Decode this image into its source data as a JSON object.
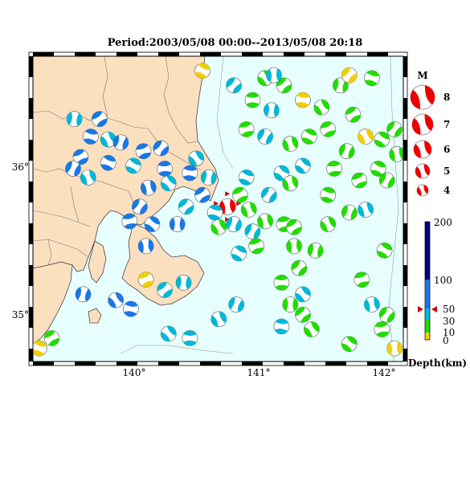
{
  "title": "Period:2003/05/08 00:00--2013/05/08 20:18",
  "axes": {
    "lon_ticks": [
      "140°",
      "141°",
      "142°"
    ],
    "lat_ticks": [
      "36°",
      "35°"
    ]
  },
  "magnitude_legend": {
    "header": "M",
    "levels": [
      "8",
      "7",
      "6",
      "5",
      "4"
    ],
    "color": "#ee0000"
  },
  "depth_scale": {
    "unit_label": "Depth(km)",
    "ticks": [
      "200",
      "100",
      "50",
      "30",
      "10",
      "0"
    ],
    "colors": {
      "shallow": "#f0d000",
      "green": "#22dd00",
      "cyan": "#00b8d8",
      "blue": "#1a78e6",
      "deep": "#00008a"
    }
  },
  "map_colors": {
    "land": "#fbe0c0",
    "sea": "#e8ffff",
    "coast": "#444444"
  },
  "events": [
    {
      "id": "main",
      "lon": 140.75,
      "lat": 35.72,
      "mag": 6,
      "depth": "main"
    },
    {
      "id": "e1",
      "lon": 139.53,
      "lat": 36.32,
      "mag": 4,
      "depth": "cyan"
    },
    {
      "id": "e2",
      "lon": 139.73,
      "lat": 36.32,
      "mag": 4,
      "depth": "blue"
    },
    {
      "id": "e3",
      "lon": 139.66,
      "lat": 36.2,
      "mag": 4,
      "depth": "blue"
    },
    {
      "id": "e4",
      "lon": 139.8,
      "lat": 36.18,
      "mag": 4,
      "depth": "cyan"
    },
    {
      "id": "e5",
      "lon": 139.9,
      "lat": 36.16,
      "mag": 4,
      "depth": "blue"
    },
    {
      "id": "e6",
      "lon": 139.58,
      "lat": 36.06,
      "mag": 4,
      "depth": "blue"
    },
    {
      "id": "e7",
      "lon": 139.8,
      "lat": 36.02,
      "mag": 4,
      "depth": "blue"
    },
    {
      "id": "e8",
      "lon": 139.64,
      "lat": 35.92,
      "mag": 4,
      "depth": "cyan"
    },
    {
      "id": "e9",
      "lon": 139.52,
      "lat": 35.98,
      "mag": 4,
      "depth": "blue"
    },
    {
      "id": "e10",
      "lon": 140.08,
      "lat": 36.1,
      "mag": 4,
      "depth": "blue"
    },
    {
      "id": "e11",
      "lon": 140.0,
      "lat": 36.0,
      "mag": 4,
      "depth": "cyan"
    },
    {
      "id": "e12",
      "lon": 140.12,
      "lat": 35.85,
      "mag": 4,
      "depth": "blue"
    },
    {
      "id": "e13",
      "lon": 140.05,
      "lat": 35.72,
      "mag": 4,
      "depth": "blue"
    },
    {
      "id": "e14",
      "lon": 139.97,
      "lat": 35.62,
      "mag": 4,
      "depth": "blue"
    },
    {
      "id": "e15",
      "lon": 140.15,
      "lat": 35.6,
      "mag": 4,
      "depth": "blue"
    },
    {
      "id": "e16",
      "lon": 140.1,
      "lat": 35.45,
      "mag": 4,
      "depth": "blue"
    },
    {
      "id": "e17",
      "lon": 140.22,
      "lat": 36.12,
      "mag": 4,
      "depth": "blue"
    },
    {
      "id": "e18",
      "lon": 140.25,
      "lat": 35.98,
      "mag": 4,
      "depth": "blue"
    },
    {
      "id": "e19",
      "lon": 140.28,
      "lat": 35.88,
      "mag": 4,
      "depth": "cyan"
    },
    {
      "id": "e20",
      "lon": 140.35,
      "lat": 35.6,
      "mag": 4,
      "depth": "blue"
    },
    {
      "id": "e21",
      "lon": 140.42,
      "lat": 35.72,
      "mag": 4,
      "depth": "cyan"
    },
    {
      "id": "e22",
      "lon": 140.45,
      "lat": 35.95,
      "mag": 4,
      "depth": "blue"
    },
    {
      "id": "e23",
      "lon": 140.5,
      "lat": 36.05,
      "mag": 4,
      "depth": "cyan"
    },
    {
      "id": "e24",
      "lon": 140.6,
      "lat": 35.92,
      "mag": 4,
      "depth": "cyan"
    },
    {
      "id": "e25",
      "lon": 140.55,
      "lat": 35.8,
      "mag": 4,
      "depth": "blue"
    },
    {
      "id": "e26",
      "lon": 140.65,
      "lat": 35.68,
      "mag": 4,
      "depth": "cyan"
    },
    {
      "id": "e27",
      "lon": 140.68,
      "lat": 35.58,
      "mag": 4,
      "depth": "green"
    },
    {
      "id": "e28",
      "lon": 140.8,
      "lat": 35.6,
      "mag": 4,
      "depth": "cyan"
    },
    {
      "id": "e29",
      "lon": 140.85,
      "lat": 35.8,
      "mag": 4,
      "depth": "green"
    },
    {
      "id": "e30",
      "lon": 140.9,
      "lat": 35.92,
      "mag": 4,
      "depth": "cyan"
    },
    {
      "id": "e31",
      "lon": 140.92,
      "lat": 35.7,
      "mag": 4,
      "depth": "green"
    },
    {
      "id": "e32",
      "lon": 140.95,
      "lat": 35.55,
      "mag": 4,
      "depth": "cyan"
    },
    {
      "id": "e33",
      "lon": 140.98,
      "lat": 35.45,
      "mag": 4,
      "depth": "green"
    },
    {
      "id": "e34",
      "lon": 140.84,
      "lat": 35.4,
      "mag": 4,
      "depth": "cyan"
    },
    {
      "id": "e35",
      "lon": 141.05,
      "lat": 35.62,
      "mag": 4,
      "depth": "green"
    },
    {
      "id": "e36",
      "lon": 141.08,
      "lat": 35.8,
      "mag": 4,
      "depth": "cyan"
    },
    {
      "id": "e37",
      "lon": 141.2,
      "lat": 35.6,
      "mag": 4,
      "depth": "green"
    },
    {
      "id": "e38",
      "lon": 141.18,
      "lat": 35.95,
      "mag": 4,
      "depth": "cyan"
    },
    {
      "id": "e39",
      "lon": 141.28,
      "lat": 35.45,
      "mag": 4,
      "depth": "green"
    },
    {
      "id": "e40",
      "lon": 141.32,
      "lat": 35.3,
      "mag": 4,
      "depth": "green"
    },
    {
      "id": "e41",
      "lon": 141.18,
      "lat": 35.2,
      "mag": 4,
      "depth": "green"
    },
    {
      "id": "e42",
      "lon": 141.35,
      "lat": 35.12,
      "mag": 4,
      "depth": "cyan"
    },
    {
      "id": "e43",
      "lon": 141.25,
      "lat": 35.05,
      "mag": 4,
      "depth": "green"
    },
    {
      "id": "e44",
      "lon": 141.35,
      "lat": 34.98,
      "mag": 4,
      "depth": "green"
    },
    {
      "id": "e45",
      "lon": 141.18,
      "lat": 34.9,
      "mag": 4,
      "depth": "cyan"
    },
    {
      "id": "e46",
      "lon": 141.42,
      "lat": 34.88,
      "mag": 4,
      "depth": "green"
    },
    {
      "id": "e47",
      "lon": 141.45,
      "lat": 35.42,
      "mag": 4,
      "depth": "green"
    },
    {
      "id": "e48",
      "lon": 141.28,
      "lat": 35.58,
      "mag": 4,
      "depth": "green"
    },
    {
      "id": "e49",
      "lon": 141.55,
      "lat": 35.8,
      "mag": 4,
      "depth": "green"
    },
    {
      "id": "e50",
      "lon": 141.55,
      "lat": 35.6,
      "mag": 4,
      "depth": "green"
    },
    {
      "id": "e51",
      "lon": 141.72,
      "lat": 35.68,
      "mag": 4,
      "depth": "green"
    },
    {
      "id": "e52",
      "lon": 141.8,
      "lat": 35.9,
      "mag": 4,
      "depth": "green"
    },
    {
      "id": "e53",
      "lon": 141.95,
      "lat": 35.98,
      "mag": 4,
      "depth": "green"
    },
    {
      "id": "e54",
      "lon": 141.85,
      "lat": 35.7,
      "mag": 4,
      "depth": "cyan"
    },
    {
      "id": "e55",
      "lon": 142.02,
      "lat": 35.9,
      "mag": 4,
      "depth": "green"
    },
    {
      "id": "e56",
      "lon": 141.82,
      "lat": 35.22,
      "mag": 4,
      "depth": "green"
    },
    {
      "id": "e57",
      "lon": 142.0,
      "lat": 35.42,
      "mag": 4,
      "depth": "green"
    },
    {
      "id": "e58",
      "lon": 141.9,
      "lat": 35.05,
      "mag": 4,
      "depth": "cyan"
    },
    {
      "id": "e59",
      "lon": 142.02,
      "lat": 34.98,
      "mag": 4,
      "depth": "green"
    },
    {
      "id": "e60",
      "lon": 141.98,
      "lat": 34.88,
      "mag": 4,
      "depth": "green"
    },
    {
      "id": "e61",
      "lon": 141.72,
      "lat": 34.78,
      "mag": 4,
      "depth": "green"
    },
    {
      "id": "e62",
      "lon": 142.08,
      "lat": 34.75,
      "mag": 4,
      "depth": "shallow"
    },
    {
      "id": "e63",
      "lon": 140.8,
      "lat": 36.55,
      "mag": 4,
      "depth": "cyan"
    },
    {
      "id": "e64",
      "lon": 140.95,
      "lat": 36.45,
      "mag": 4,
      "depth": "green"
    },
    {
      "id": "e65",
      "lon": 141.05,
      "lat": 36.6,
      "mag": 4,
      "depth": "green"
    },
    {
      "id": "e66",
      "lon": 141.1,
      "lat": 36.38,
      "mag": 4,
      "depth": "cyan"
    },
    {
      "id": "e67",
      "lon": 141.2,
      "lat": 36.55,
      "mag": 4,
      "depth": "green"
    },
    {
      "id": "e68",
      "lon": 141.35,
      "lat": 36.45,
      "mag": 4,
      "depth": "shallow"
    },
    {
      "id": "e69",
      "lon": 141.5,
      "lat": 36.4,
      "mag": 4,
      "depth": "green"
    },
    {
      "id": "e70",
      "lon": 141.65,
      "lat": 36.55,
      "mag": 4,
      "depth": "green"
    },
    {
      "id": "e71",
      "lon": 141.75,
      "lat": 36.35,
      "mag": 4,
      "depth": "green"
    },
    {
      "id": "e72",
      "lon": 141.9,
      "lat": 36.6,
      "mag": 4,
      "depth": "green"
    },
    {
      "id": "e73",
      "lon": 141.85,
      "lat": 36.2,
      "mag": 4,
      "depth": "shallow"
    },
    {
      "id": "e74",
      "lon": 141.7,
      "lat": 36.1,
      "mag": 4,
      "depth": "green"
    },
    {
      "id": "e75",
      "lon": 141.55,
      "lat": 36.25,
      "mag": 4,
      "depth": "green"
    },
    {
      "id": "e76",
      "lon": 141.4,
      "lat": 36.2,
      "mag": 4,
      "depth": "green"
    },
    {
      "id": "e77",
      "lon": 141.25,
      "lat": 36.15,
      "mag": 4,
      "depth": "green"
    },
    {
      "id": "e78",
      "lon": 141.05,
      "lat": 36.2,
      "mag": 4,
      "depth": "cyan"
    },
    {
      "id": "e79",
      "lon": 140.9,
      "lat": 36.25,
      "mag": 4,
      "depth": "green"
    },
    {
      "id": "e80",
      "lon": 141.98,
      "lat": 36.18,
      "mag": 4,
      "depth": "green"
    },
    {
      "id": "e81",
      "lon": 142.1,
      "lat": 36.08,
      "mag": 4,
      "depth": "green"
    },
    {
      "id": "e82",
      "lon": 142.08,
      "lat": 36.25,
      "mag": 4,
      "depth": "green"
    },
    {
      "id": "e83",
      "lon": 141.6,
      "lat": 35.98,
      "mag": 4,
      "depth": "green"
    },
    {
      "id": "e84",
      "lon": 141.35,
      "lat": 36.0,
      "mag": 4,
      "depth": "cyan"
    },
    {
      "id": "e85",
      "lon": 141.12,
      "lat": 36.62,
      "mag": 4,
      "depth": "cyan"
    },
    {
      "id": "e86",
      "lon": 141.72,
      "lat": 36.62,
      "mag": 4,
      "depth": "shallow"
    },
    {
      "id": "e87",
      "lon": 140.45,
      "lat": 34.82,
      "mag": 4,
      "depth": "cyan"
    },
    {
      "id": "e88",
      "lon": 140.28,
      "lat": 34.85,
      "mag": 4,
      "depth": "cyan"
    },
    {
      "id": "e89",
      "lon": 140.4,
      "lat": 35.2,
      "mag": 4,
      "depth": "cyan"
    },
    {
      "id": "e90",
      "lon": 140.25,
      "lat": 35.15,
      "mag": 4,
      "depth": "cyan"
    },
    {
      "id": "e91",
      "lon": 139.98,
      "lat": 35.02,
      "mag": 4,
      "depth": "blue"
    },
    {
      "id": "e92",
      "lon": 139.86,
      "lat": 35.08,
      "mag": 4,
      "depth": "blue"
    },
    {
      "id": "e93",
      "lon": 139.6,
      "lat": 35.12,
      "mag": 4,
      "depth": "blue"
    },
    {
      "id": "e94",
      "lon": 139.35,
      "lat": 34.82,
      "mag": 4,
      "depth": "green"
    },
    {
      "id": "e95",
      "lon": 139.25,
      "lat": 34.75,
      "mag": 4,
      "depth": "shallow"
    },
    {
      "id": "e96",
      "lon": 140.68,
      "lat": 34.95,
      "mag": 4,
      "depth": "cyan"
    },
    {
      "id": "e97",
      "lon": 140.82,
      "lat": 35.05,
      "mag": 4,
      "depth": "cyan"
    },
    {
      "id": "e98",
      "lon": 140.1,
      "lat": 35.22,
      "mag": 4,
      "depth": "shallow"
    },
    {
      "id": "e99",
      "lon": 140.55,
      "lat": 36.65,
      "mag": 4,
      "depth": "shallow"
    },
    {
      "id": "e100",
      "lon": 141.25,
      "lat": 35.88,
      "mag": 4,
      "depth": "green"
    }
  ]
}
